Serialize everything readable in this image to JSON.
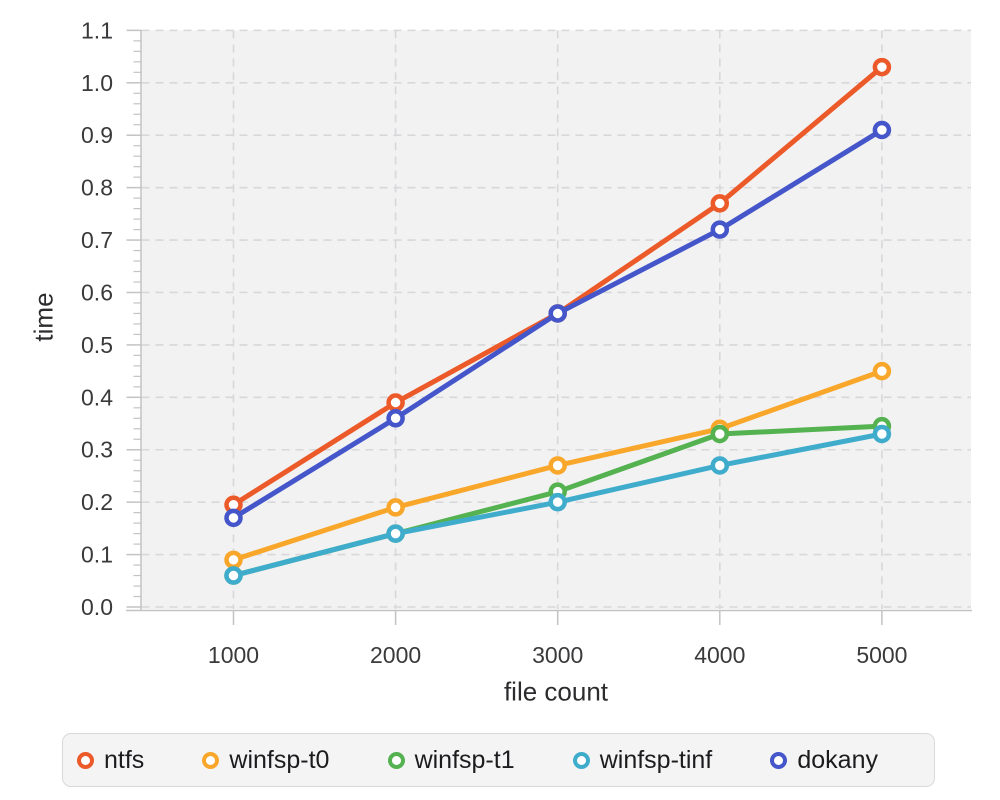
{
  "chart_data": {
    "type": "line",
    "title": "",
    "xlabel": "file count",
    "ylabel": "time",
    "x": [
      1000,
      2000,
      3000,
      4000,
      5000
    ],
    "xtick_labels": [
      "1000",
      "2000",
      "3000",
      "4000",
      "5000"
    ],
    "ytick_labels": [
      "0.0",
      "0.1",
      "0.2",
      "0.3",
      "0.4",
      "0.5",
      "0.6",
      "0.7",
      "0.8",
      "0.9",
      "1.0",
      "1.1"
    ],
    "ylim": [
      0.0,
      1.1
    ],
    "ytick_step": 0.1,
    "y_minor_ticks_per_major": 4,
    "grid": true,
    "grid_style": "dashed",
    "legend_position": "bottom",
    "marker_style": "open-circle",
    "series": [
      {
        "name": "ntfs",
        "color": "#EC5A29",
        "values": [
          0.195,
          0.39,
          0.56,
          0.77,
          1.03
        ]
      },
      {
        "name": "winfsp-t0",
        "color": "#F9A72B",
        "values": [
          0.09,
          0.19,
          0.27,
          0.34,
          0.45
        ]
      },
      {
        "name": "winfsp-t1",
        "color": "#55B250",
        "values": [
          0.06,
          0.14,
          0.22,
          0.33,
          0.345
        ]
      },
      {
        "name": "winfsp-tinf",
        "color": "#3FACCC",
        "values": [
          0.06,
          0.14,
          0.2,
          0.27,
          0.33
        ]
      },
      {
        "name": "dokany",
        "color": "#4456C9",
        "values": [
          0.17,
          0.36,
          0.56,
          0.72,
          0.91
        ]
      }
    ]
  },
  "style": {
    "plot_bg": "#f2f2f3",
    "grid_color": "#d8d8da",
    "axis_color": "#c3c3c5",
    "tick_label_color": "#3a3a3c",
    "axis_title_color": "#2c2c2e",
    "legend_bg": "#f4f4f5",
    "legend_border": "#d9d9db",
    "legend_text_color": "#1c1c1e"
  }
}
